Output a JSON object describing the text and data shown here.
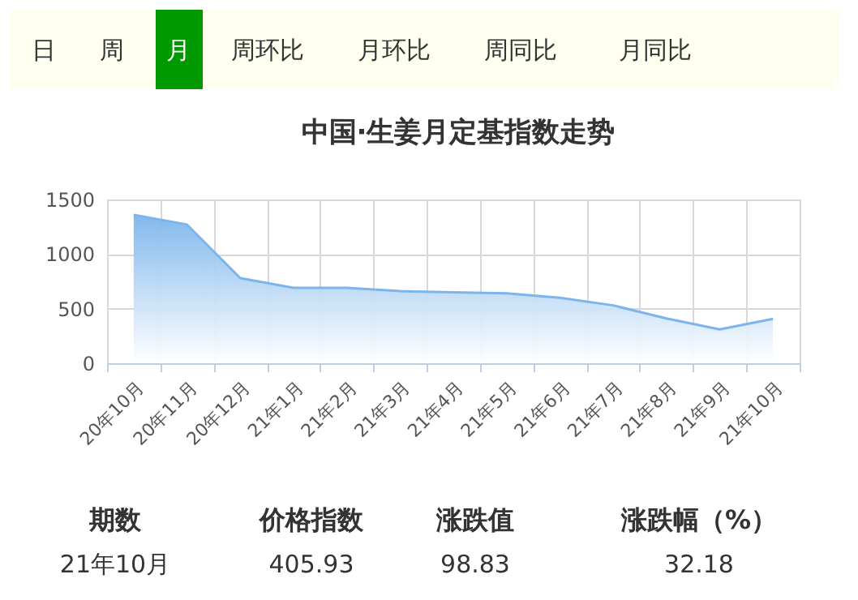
{
  "chart_data": {
    "type": "area",
    "title": "中国·生姜月定基指数走势",
    "categories": [
      "20年10月",
      "20年11月",
      "20年12月",
      "21年1月",
      "21年2月",
      "21年3月",
      "21年4月",
      "21年5月",
      "21年6月",
      "21年7月",
      "21年8月",
      "21年9月",
      "21年10月"
    ],
    "series": [
      {
        "color": "#7cb5ec",
        "values": [
          1360,
          1270,
          780,
          690,
          690,
          660,
          650,
          640,
          600,
          530,
          410,
          310,
          405.93
        ]
      }
    ],
    "ylim": [
      0,
      1500
    ],
    "yticks": [
      0,
      500,
      1000,
      1500
    ],
    "grid": true,
    "annotations": [
      "日",
      "周",
      "月",
      "周环比",
      "月环比",
      "周同比",
      "月同比",
      "期数",
      "价格指数",
      "涨跌值",
      "涨跌幅（%）",
      "21年10月",
      "405.93",
      "98.83",
      "32.18"
    ]
  }
}
